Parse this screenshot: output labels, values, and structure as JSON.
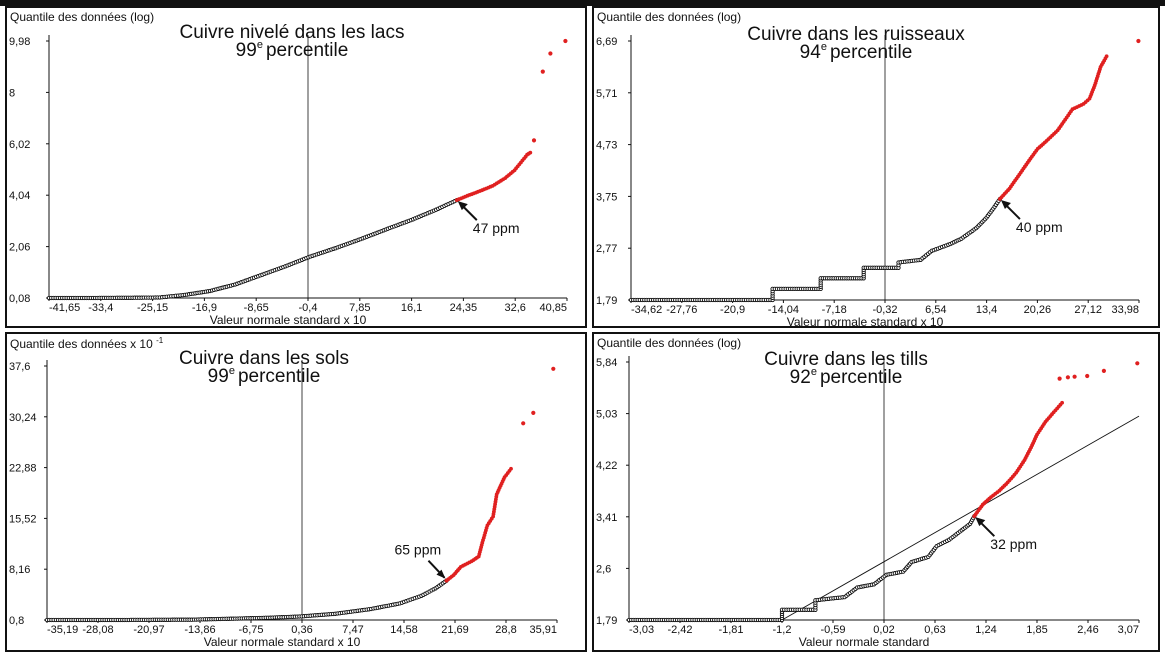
{
  "chart_data": [
    {
      "type": "scatter",
      "id": "lacs",
      "ylabel": "Quantile des données (log)",
      "title_line1": "Cuivre nivelé dans les lacs",
      "title_pct": "99",
      "title_sup": "e",
      "title_word": "percentile",
      "xlabel": "Valeur normale standard x 10",
      "xticks": [
        "-41,65",
        "-33,4",
        "-25,15",
        "-16,9",
        "-8,65",
        "-0,4",
        "7,85",
        "16,1",
        "24,35",
        "32,6",
        "40,85"
      ],
      "yticks": [
        "0,08",
        "2,06",
        "4,04",
        "6,02",
        "8",
        "9,98"
      ],
      "xlim": [
        -41.65,
        40.85
      ],
      "ylim": [
        0.08,
        9.98
      ],
      "zero_x": -0.4,
      "threshold_label": "47 ppm",
      "threshold_point": [
        23.3,
        3.85
      ],
      "curve_black": [
        [
          -41.65,
          0.08
        ],
        [
          -35,
          0.08
        ],
        [
          -28,
          0.09
        ],
        [
          -24,
          0.1
        ],
        [
          -20,
          0.2
        ],
        [
          -16,
          0.35
        ],
        [
          -12,
          0.6
        ],
        [
          -8,
          0.95
        ],
        [
          -4,
          1.3
        ],
        [
          0,
          1.68
        ],
        [
          4,
          2.0
        ],
        [
          8,
          2.35
        ],
        [
          12,
          2.72
        ],
        [
          16,
          3.08
        ],
        [
          20,
          3.48
        ],
        [
          23.3,
          3.85
        ]
      ],
      "curve_red": [
        [
          23.3,
          3.85
        ],
        [
          25,
          4.02
        ],
        [
          27,
          4.2
        ],
        [
          29,
          4.4
        ],
        [
          31,
          4.7
        ],
        [
          32.5,
          5.0
        ],
        [
          33.5,
          5.3
        ],
        [
          34.5,
          5.6
        ],
        [
          35,
          5.68
        ]
      ],
      "red_outliers": [
        [
          35.6,
          6.15
        ],
        [
          37,
          8.8
        ],
        [
          38.2,
          9.5
        ],
        [
          40.6,
          9.98
        ]
      ]
    },
    {
      "type": "scatter",
      "id": "ruisseaux",
      "ylabel": "Quantile des données (log)",
      "title_line1": "Cuivre dans les ruisseaux",
      "title_pct": "94",
      "title_sup": "e",
      "title_word": "percentile",
      "xlabel": "Valeur normale standard x 10",
      "xticks": [
        "-34,62",
        "-27,76",
        "-20,9",
        "-14,04",
        "-7,18",
        "-0,32",
        "6,54",
        "13,4",
        "20,26",
        "27,12",
        "33,98"
      ],
      "yticks": [
        "1,79",
        "2,77",
        "3,75",
        "4,73",
        "5,71",
        "6,69"
      ],
      "xlim": [
        -34.62,
        33.98
      ],
      "ylim": [
        1.79,
        6.69
      ],
      "zero_x": -0.32,
      "threshold_label": "40 ppm",
      "threshold_point": [
        15.2,
        3.7
      ],
      "curve_black": [
        [
          -34.62,
          1.79
        ],
        [
          -15.5,
          1.79
        ],
        [
          -15.5,
          2.0
        ],
        [
          -9,
          2.0
        ],
        [
          -9,
          2.2
        ],
        [
          -3.2,
          2.2
        ],
        [
          -3.2,
          2.4
        ],
        [
          1.5,
          2.4
        ],
        [
          1.5,
          2.5
        ],
        [
          4.5,
          2.55
        ],
        [
          6,
          2.72
        ],
        [
          8.5,
          2.85
        ],
        [
          10,
          2.95
        ],
        [
          12,
          3.15
        ],
        [
          13.4,
          3.35
        ],
        [
          14.3,
          3.52
        ],
        [
          15.2,
          3.7
        ]
      ],
      "curve_red": [
        [
          15.2,
          3.7
        ],
        [
          16.5,
          3.9
        ],
        [
          18,
          4.2
        ],
        [
          19.5,
          4.5
        ],
        [
          20.3,
          4.65
        ],
        [
          21.5,
          4.8
        ],
        [
          23,
          5.0
        ],
        [
          24,
          5.2
        ],
        [
          25,
          5.4
        ],
        [
          26.5,
          5.5
        ],
        [
          27.3,
          5.6
        ],
        [
          28,
          5.85
        ],
        [
          28.8,
          6.2
        ],
        [
          29.6,
          6.4
        ]
      ],
      "red_outliers": [
        [
          33.9,
          6.69
        ]
      ]
    },
    {
      "type": "scatter",
      "id": "sols",
      "ylabel": "Quantile des données x 10",
      "ylabel_sup": "-1",
      "title_line1": "Cuivre dans les sols",
      "title_pct": "99",
      "title_sup": "e",
      "title_word": "percentile",
      "xlabel": "Valeur normale standard x 10",
      "xticks": [
        "-35,19",
        "-28,08",
        "-20,97",
        "-13,86",
        "-6,75",
        "0,36",
        "7,47",
        "14,58",
        "21,69",
        "28,8",
        "35,91"
      ],
      "yticks": [
        "0,8",
        "8,16",
        "15,52",
        "22,88",
        "30,24",
        "37,6"
      ],
      "xlim": [
        -35.19,
        35.91
      ],
      "ylim": [
        0.8,
        37.6
      ],
      "zero_x": 0.36,
      "threshold_label": "65 ppm",
      "threshold_point": [
        20.5,
        6.5
      ],
      "curve_black": [
        [
          -35.19,
          0.8
        ],
        [
          -25,
          0.8
        ],
        [
          -15,
          0.85
        ],
        [
          -5,
          1.1
        ],
        [
          0,
          1.3
        ],
        [
          5,
          1.7
        ],
        [
          10,
          2.4
        ],
        [
          14,
          3.2
        ],
        [
          17,
          4.3
        ],
        [
          19,
          5.4
        ],
        [
          20.5,
          6.5
        ]
      ],
      "curve_red": [
        [
          20.5,
          6.5
        ],
        [
          21.5,
          7.3
        ],
        [
          22.5,
          8.5
        ],
        [
          24,
          9.3
        ],
        [
          25,
          10
        ],
        [
          25.5,
          12
        ],
        [
          26.2,
          14.5
        ],
        [
          27,
          15.8
        ],
        [
          27.5,
          19
        ],
        [
          28.6,
          21.5
        ],
        [
          29.5,
          22.7
        ]
      ],
      "red_outliers": [
        [
          31.2,
          29.3
        ],
        [
          32.6,
          30.8
        ],
        [
          35.4,
          37.2
        ]
      ]
    },
    {
      "type": "scatter",
      "id": "tills",
      "ylabel": "Quantile des données (log)",
      "title_line1": "Cuivre dans les tills",
      "title_pct": "92",
      "title_sup": "e",
      "title_word": "percentile",
      "xlabel": "Valeur normale standard",
      "xticks": [
        "-3,03",
        "-2,42",
        "-1,81",
        "-1,2",
        "-0,59",
        "0,02",
        "0,63",
        "1,24",
        "1,85",
        "2,46",
        "3,07"
      ],
      "yticks": [
        "1,79",
        "2,6",
        "3,41",
        "4,22",
        "5,03",
        "5,84"
      ],
      "xlim": [
        -3.03,
        3.07
      ],
      "ylim": [
        1.79,
        5.84
      ],
      "zero_x": 0.02,
      "threshold_label": "32 ppm",
      "threshold_point": [
        1.1,
        3.42
      ],
      "curve_black": [
        [
          -3.03,
          1.79
        ],
        [
          -1.2,
          1.79
        ],
        [
          -1.2,
          1.95
        ],
        [
          -0.8,
          1.95
        ],
        [
          -0.8,
          2.1
        ],
        [
          -0.45,
          2.15
        ],
        [
          -0.3,
          2.3
        ],
        [
          -0.1,
          2.35
        ],
        [
          0.05,
          2.5
        ],
        [
          0.25,
          2.55
        ],
        [
          0.35,
          2.7
        ],
        [
          0.55,
          2.78
        ],
        [
          0.65,
          2.95
        ],
        [
          0.8,
          3.05
        ],
        [
          0.95,
          3.2
        ],
        [
          1.05,
          3.3
        ],
        [
          1.1,
          3.42
        ]
      ],
      "curve_red": [
        [
          1.1,
          3.42
        ],
        [
          1.2,
          3.6
        ],
        [
          1.3,
          3.72
        ],
        [
          1.4,
          3.82
        ],
        [
          1.5,
          3.95
        ],
        [
          1.6,
          4.1
        ],
        [
          1.7,
          4.3
        ],
        [
          1.78,
          4.5
        ],
        [
          1.85,
          4.7
        ],
        [
          1.95,
          4.9
        ],
        [
          2.05,
          5.05
        ],
        [
          2.15,
          5.2
        ]
      ],
      "red_outliers": [
        [
          2.12,
          5.58
        ],
        [
          2.22,
          5.6
        ],
        [
          2.3,
          5.61
        ],
        [
          2.45,
          5.62
        ],
        [
          2.65,
          5.7
        ],
        [
          3.05,
          5.82
        ]
      ],
      "ref_line": [
        [
          -1.2,
          1.79
        ],
        [
          3.07,
          4.99
        ]
      ]
    }
  ]
}
